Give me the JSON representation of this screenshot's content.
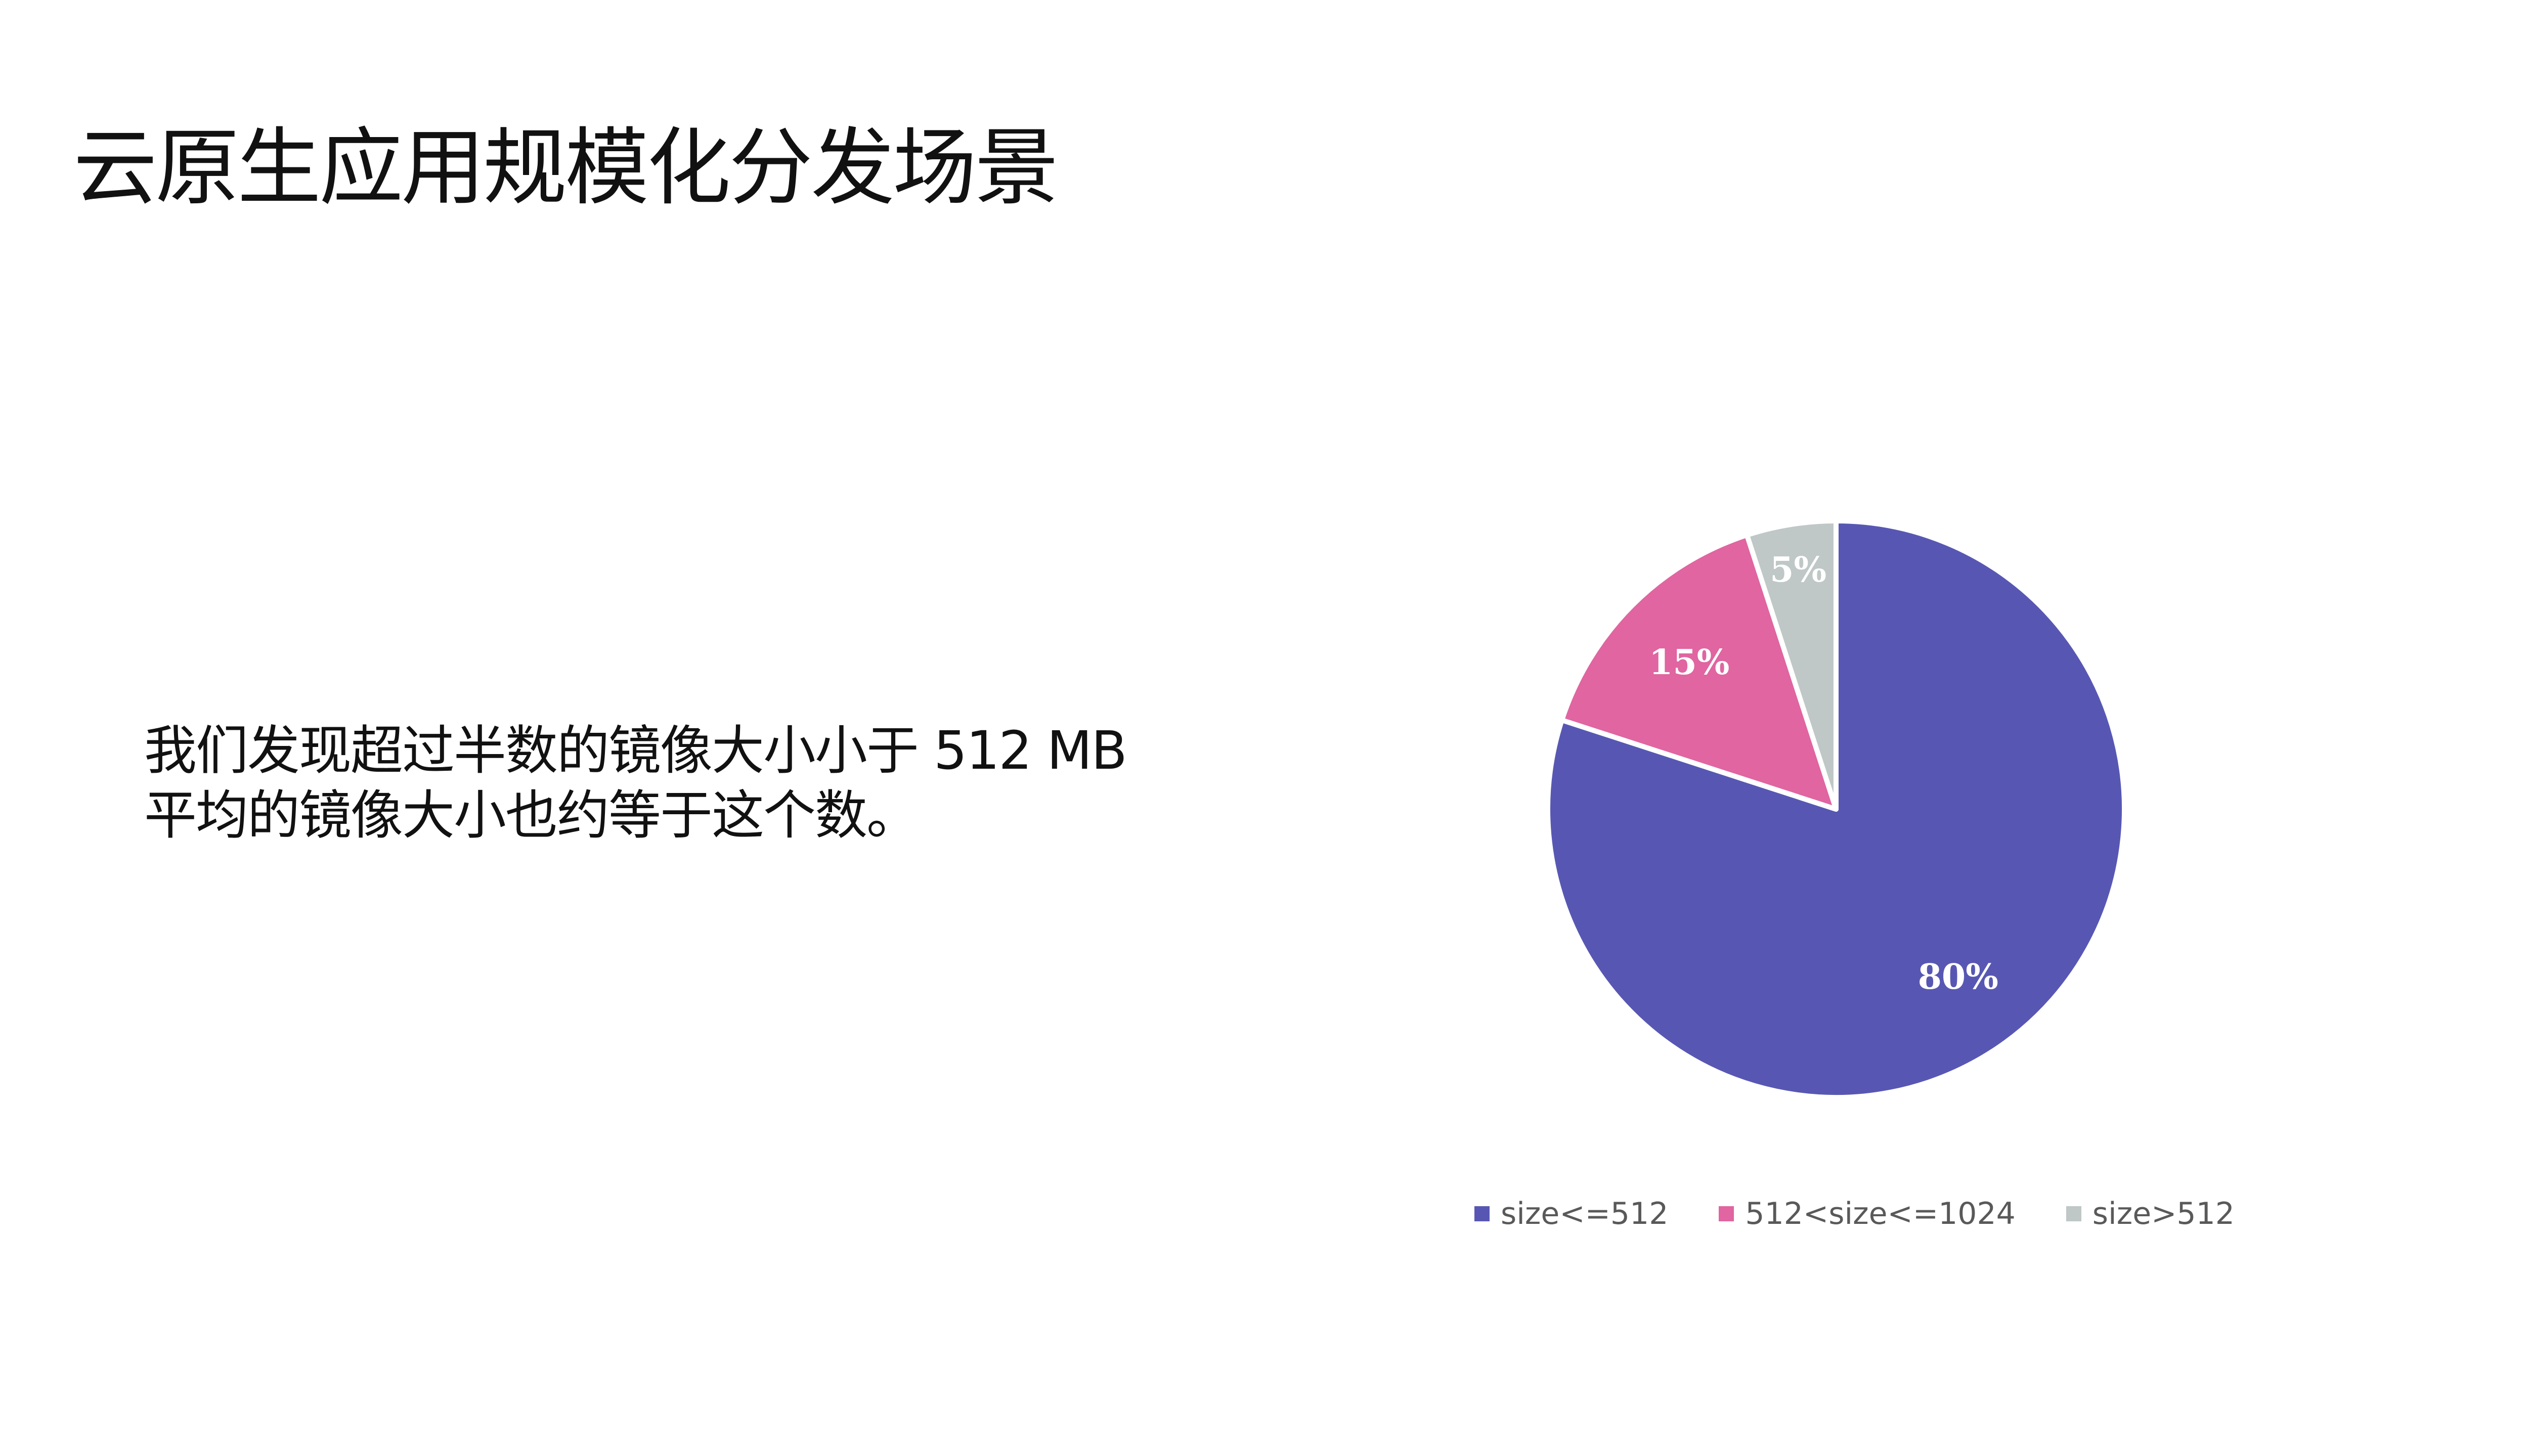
{
  "title": "云原生应用规模化分发场景",
  "body_lines": [
    "我们发现超过半数的镜像大小小于 512 MB",
    "平均的镜像大小也约等于这个数。"
  ],
  "chart_data": {
    "type": "pie",
    "start_angle_deg": 0,
    "direction": "clockwise",
    "legend_position": "bottom",
    "series": [
      {
        "name": "size<=512",
        "value": 80,
        "label": "80%",
        "color": "#5757b3"
      },
      {
        "name": "512<size<=1024",
        "value": 15,
        "label": "15%",
        "color": "#e065a1"
      },
      {
        "name": "size>512",
        "value": 5,
        "label": "5%",
        "color": "#bfc7c7"
      }
    ]
  }
}
